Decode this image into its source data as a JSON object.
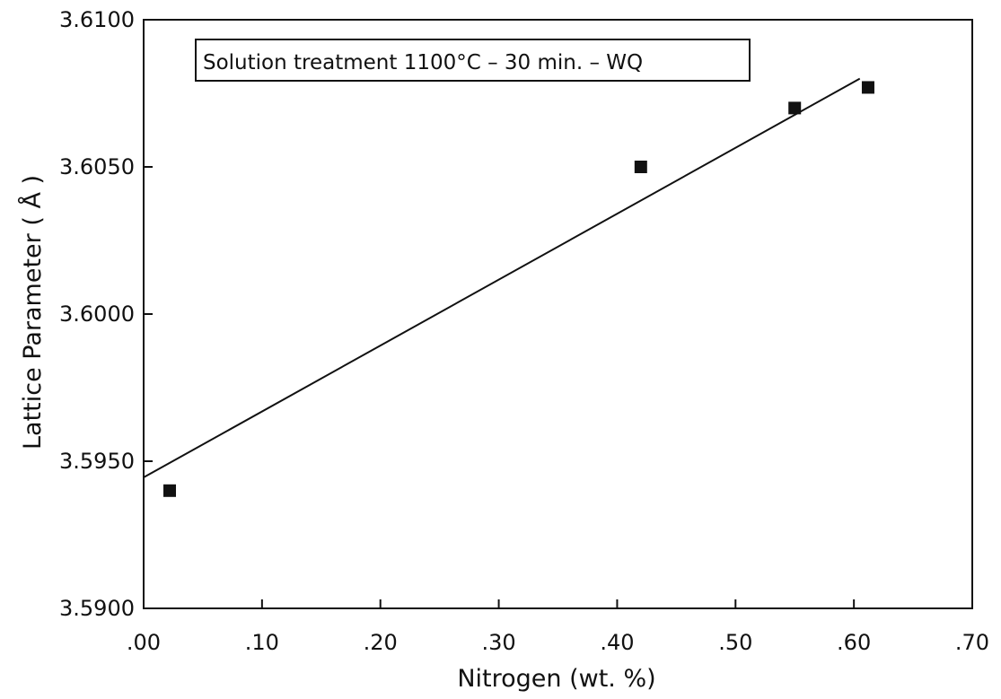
{
  "chart_data": {
    "type": "scatter",
    "title": "",
    "xlabel": "Nitrogen (wt. %)",
    "ylabel": "Lattice Parameter ( Å )",
    "xlim": [
      0.0,
      0.7
    ],
    "ylim": [
      3.59,
      3.61
    ],
    "x_ticks": [
      0.0,
      0.1,
      0.2,
      0.3,
      0.4,
      0.5,
      0.6,
      0.7
    ],
    "x_tick_labels": [
      ".00",
      ".10",
      ".20",
      ".30",
      ".40",
      ".50",
      ".60",
      ".70"
    ],
    "y_ticks": [
      3.59,
      3.595,
      3.6,
      3.605,
      3.61
    ],
    "y_tick_labels": [
      "3.5900",
      "3.5950",
      "3.6000",
      "3.6050",
      "3.6100"
    ],
    "grid": false,
    "annotation": "Solution treatment 1100°C – 30 min. – WQ",
    "series": [
      {
        "marker": "square",
        "color": "#111111",
        "points": [
          {
            "x": 0.022,
            "y": 3.594
          },
          {
            "x": 0.42,
            "y": 3.605
          },
          {
            "x": 0.55,
            "y": 3.607
          },
          {
            "x": 0.612,
            "y": 3.6077
          }
        ]
      }
    ],
    "fit_line": {
      "color": "#111111",
      "points": [
        {
          "x": 0.0,
          "y": 3.59445
        },
        {
          "x": 0.605,
          "y": 3.608
        }
      ]
    }
  }
}
